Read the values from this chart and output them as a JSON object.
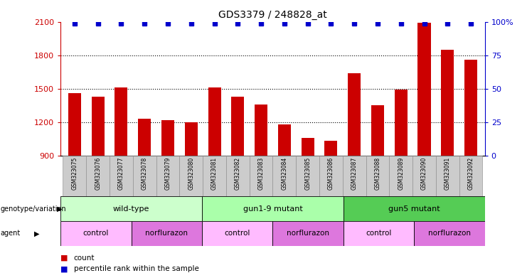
{
  "title": "GDS3379 / 248828_at",
  "samples": [
    "GSM323075",
    "GSM323076",
    "GSM323077",
    "GSM323078",
    "GSM323079",
    "GSM323080",
    "GSM323081",
    "GSM323082",
    "GSM323083",
    "GSM323084",
    "GSM323085",
    "GSM323086",
    "GSM323087",
    "GSM323088",
    "GSM323089",
    "GSM323090",
    "GSM323091",
    "GSM323092"
  ],
  "counts": [
    1460,
    1430,
    1510,
    1230,
    1220,
    1200,
    1510,
    1430,
    1360,
    1180,
    1060,
    1030,
    1640,
    1350,
    1490,
    2090,
    1850,
    1760
  ],
  "percentile_ranks": [
    99,
    99,
    99,
    99,
    99,
    99,
    99,
    99,
    99,
    99,
    99,
    99,
    99,
    99,
    99,
    99,
    99,
    99
  ],
  "ymin": 900,
  "ymax": 2100,
  "yticks_left": [
    900,
    1200,
    1500,
    1800,
    2100
  ],
  "yticks_right_vals": [
    0,
    25,
    50,
    75,
    100
  ],
  "yticks_right_labels": [
    "0",
    "25",
    "50",
    "75",
    "100%"
  ],
  "bar_color": "#cc0000",
  "dot_color": "#0000cc",
  "left_axis_color": "#cc0000",
  "right_axis_color": "#0000cc",
  "grid_yticks": [
    1200,
    1500,
    1800
  ],
  "genotype_groups": [
    {
      "label": "wild-type",
      "start": 0,
      "end": 6,
      "color": "#ccffcc"
    },
    {
      "label": "gun1-9 mutant",
      "start": 6,
      "end": 12,
      "color": "#aaffaa"
    },
    {
      "label": "gun5 mutant",
      "start": 12,
      "end": 18,
      "color": "#55cc55"
    }
  ],
  "agent_groups": [
    {
      "label": "control",
      "start": 0,
      "end": 3,
      "color": "#ffbbff"
    },
    {
      "label": "norflurazon",
      "start": 3,
      "end": 6,
      "color": "#dd77dd"
    },
    {
      "label": "control",
      "start": 6,
      "end": 9,
      "color": "#ffbbff"
    },
    {
      "label": "norflurazon",
      "start": 9,
      "end": 12,
      "color": "#dd77dd"
    },
    {
      "label": "control",
      "start": 12,
      "end": 15,
      "color": "#ffbbff"
    },
    {
      "label": "norflurazon",
      "start": 15,
      "end": 18,
      "color": "#dd77dd"
    }
  ]
}
